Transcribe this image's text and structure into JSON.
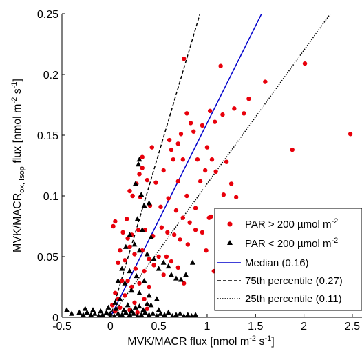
{
  "chart_data": {
    "type": "scatter",
    "xlim": [
      -0.5,
      2.6
    ],
    "ylim": [
      0,
      0.25
    ],
    "xticks": [
      -0.5,
      0,
      0.5,
      1,
      1.5,
      2,
      2.5
    ],
    "xtick_labels": [
      "-0.5",
      "0",
      "0.5",
      "1",
      "1.5",
      "2",
      "2.5"
    ],
    "yticks": [
      0,
      0.05,
      0.1,
      0.15,
      0.2,
      0.25
    ],
    "ytick_labels": [
      "0",
      "0.05",
      "0.1",
      "0.15",
      "0.2",
      "0.25"
    ],
    "xlabel": {
      "main": "MVK/MACR flux [nmol m",
      "sup1": "-2",
      "mid": " s",
      "sup2": "-1",
      "end": "]"
    },
    "ylabel": {
      "main": "MVK/MACR",
      "sub": "ox, Isop",
      "mid": " flux [nmol m",
      "sup1": "-2",
      "mid2": " s",
      "sup2": "-1",
      "end": "]"
    },
    "grid": false,
    "legend_position": "bottom-right",
    "colors": {
      "high_par": "#e8000b",
      "low_par": "#000000",
      "median": "#0000cc",
      "pct75": "#000000",
      "pct25": "#000000"
    },
    "series": [
      {
        "name": "PAR > 200 µmol m-2",
        "label_main": "PAR > 200 µmol m",
        "label_sup": "-2",
        "marker": "circle",
        "color": "#e8000b",
        "points": [
          [
            0.76,
            0.213
          ],
          [
            1.14,
            0.207
          ],
          [
            2.01,
            0.209
          ],
          [
            1.6,
            0.194
          ],
          [
            2.48,
            0.151
          ],
          [
            1.88,
            0.138
          ],
          [
            1.03,
            0.17
          ],
          [
            1.16,
            0.167
          ],
          [
            1.28,
            0.172
          ],
          [
            1.43,
            0.18
          ],
          [
            1.38,
            0.168
          ],
          [
            1.08,
            0.161
          ],
          [
            0.95,
            0.158
          ],
          [
            0.79,
            0.168
          ],
          [
            0.83,
            0.16
          ],
          [
            0.86,
            0.153
          ],
          [
            0.73,
            0.151
          ],
          [
            0.7,
            0.143
          ],
          [
            0.61,
            0.146
          ],
          [
            0.63,
            0.138
          ],
          [
            0.65,
            0.13
          ],
          [
            0.75,
            0.13
          ],
          [
            0.9,
            0.13
          ],
          [
            1.0,
            0.14
          ],
          [
            1.05,
            0.13
          ],
          [
            1.2,
            0.128
          ],
          [
            1.25,
            0.11
          ],
          [
            1.09,
            0.12
          ],
          [
            0.98,
            0.121
          ],
          [
            0.93,
            0.112
          ],
          [
            0.88,
            0.09
          ],
          [
            0.79,
            0.1
          ],
          [
            0.7,
            0.112
          ],
          [
            0.55,
            0.121
          ],
          [
            0.43,
            0.14
          ],
          [
            0.33,
            0.132
          ],
          [
            0.33,
            0.123
          ],
          [
            0.3,
            0.118
          ],
          [
            0.38,
            0.113
          ],
          [
            0.47,
            0.111
          ],
          [
            0.27,
            0.11
          ],
          [
            0.2,
            0.104
          ],
          [
            0.23,
            0.1
          ],
          [
            0.31,
            0.099
          ],
          [
            0.41,
            0.092
          ],
          [
            0.52,
            0.091
          ],
          [
            0.6,
            0.098
          ],
          [
            0.68,
            0.088
          ],
          [
            0.75,
            0.082
          ],
          [
            0.82,
            0.078
          ],
          [
            0.88,
            0.072
          ],
          [
            0.95,
            0.07
          ],
          [
            1.02,
            0.082
          ],
          [
            1.2,
            0.088
          ],
          [
            1.17,
            0.101
          ],
          [
            1.3,
            0.099
          ],
          [
            1.35,
            0.06
          ],
          [
            1.04,
            0.083
          ],
          [
            0.99,
            0.055
          ],
          [
            1.07,
            0.038
          ],
          [
            0.03,
            0.075
          ],
          [
            0.05,
            0.079
          ],
          [
            0.17,
            0.081
          ],
          [
            0.13,
            0.07
          ],
          [
            0.18,
            0.065
          ],
          [
            0.22,
            0.068
          ],
          [
            0.29,
            0.072
          ],
          [
            0.36,
            0.072
          ],
          [
            0.44,
            0.067
          ],
          [
            0.53,
            0.074
          ],
          [
            0.59,
            0.07
          ],
          [
            0.66,
            0.068
          ],
          [
            0.72,
            0.064
          ],
          [
            0.8,
            0.06
          ],
          [
            0.1,
            0.055
          ],
          [
            0.2,
            0.058
          ],
          [
            0.25,
            0.052
          ],
          [
            0.33,
            0.055
          ],
          [
            0.4,
            0.048
          ],
          [
            0.5,
            0.05
          ],
          [
            0.58,
            0.05
          ],
          [
            0.63,
            0.046
          ],
          [
            0.7,
            0.041
          ],
          [
            0.76,
            0.028
          ],
          [
            0.08,
            0.045
          ],
          [
            0.15,
            0.047
          ],
          [
            0.26,
            0.04
          ],
          [
            0.35,
            0.038
          ],
          [
            0.45,
            0.043
          ],
          [
            0.55,
            0.035
          ],
          [
            0.12,
            0.03
          ],
          [
            0.18,
            0.03
          ],
          [
            0.22,
            0.025
          ],
          [
            0.3,
            0.028
          ],
          [
            0.4,
            0.025
          ],
          [
            0.05,
            0.02
          ],
          [
            0.08,
            0.015
          ],
          [
            0.15,
            0.018
          ],
          [
            0.25,
            0.012
          ],
          [
            0.35,
            0.015
          ],
          [
            0.1,
            0.008
          ],
          [
            0.02,
            0.01
          ],
          [
            0.05,
            0.005
          ],
          [
            0.2,
            0.006
          ],
          [
            0.28,
            0.004
          ],
          [
            0.38,
            0.007
          ]
        ]
      },
      {
        "name": "PAR < 200 µmol m-2",
        "label_main": "PAR < 200 µmol m",
        "label_sup": "-2",
        "marker": "triangle",
        "color": "#000000",
        "points": [
          [
            0.3,
            0.13
          ],
          [
            0.29,
            0.126
          ],
          [
            0.26,
            0.11
          ],
          [
            0.32,
            0.101
          ],
          [
            0.4,
            0.094
          ],
          [
            0.35,
            0.092
          ],
          [
            0.28,
            0.081
          ],
          [
            0.33,
            0.072
          ],
          [
            0.2,
            0.068
          ],
          [
            0.42,
            0.066
          ],
          [
            0.25,
            0.06
          ],
          [
            0.16,
            0.058
          ],
          [
            0.3,
            0.055
          ],
          [
            0.38,
            0.052
          ],
          [
            0.45,
            0.048
          ],
          [
            0.55,
            0.045
          ],
          [
            0.5,
            0.04
          ],
          [
            0.6,
            0.042
          ],
          [
            0.63,
            0.035
          ],
          [
            0.68,
            0.032
          ],
          [
            0.73,
            0.031
          ],
          [
            0.78,
            0.035
          ],
          [
            0.85,
            0.045
          ],
          [
            0.12,
            0.04
          ],
          [
            0.2,
            0.038
          ],
          [
            0.27,
            0.034
          ],
          [
            0.35,
            0.03
          ],
          [
            0.08,
            0.03
          ],
          [
            0.15,
            0.028
          ],
          [
            0.22,
            0.022
          ],
          [
            0.3,
            0.02
          ],
          [
            0.4,
            0.018
          ],
          [
            0.48,
            0.015
          ],
          [
            0.1,
            0.015
          ],
          [
            0.05,
            0.012
          ],
          [
            0.18,
            0.01
          ],
          [
            0.26,
            0.008
          ],
          [
            0.34,
            0.006
          ],
          [
            0.42,
            0.01
          ],
          [
            -0.45,
            0.006
          ],
          [
            -0.4,
            0.003
          ],
          [
            -0.32,
            0.004
          ],
          [
            -0.28,
            0.002
          ],
          [
            -0.24,
            0.004
          ],
          [
            -0.2,
            0.002
          ],
          [
            -0.16,
            0.003
          ],
          [
            -0.12,
            0.001
          ],
          [
            -0.08,
            0.002
          ],
          [
            -0.04,
            0.004
          ],
          [
            0.0,
            0.003
          ],
          [
            0.04,
            0.001
          ],
          [
            0.08,
            0.003
          ],
          [
            0.12,
            0.002
          ],
          [
            0.16,
            0.004
          ],
          [
            0.2,
            0.002
          ],
          [
            0.24,
            0.003
          ],
          [
            0.28,
            0.001
          ],
          [
            0.32,
            0.002
          ],
          [
            0.36,
            0.004
          ],
          [
            0.4,
            0.002
          ],
          [
            0.44,
            0.003
          ],
          [
            0.48,
            0.001
          ],
          [
            0.52,
            0.003
          ],
          [
            0.56,
            0.002
          ],
          [
            0.6,
            0.004
          ],
          [
            0.64,
            0.001
          ],
          [
            0.68,
            0.002
          ],
          [
            0.72,
            0.003
          ],
          [
            0.76,
            0.001
          ],
          [
            0.8,
            0.002
          ],
          [
            0.84,
            0.001
          ],
          [
            0.88,
            0.002
          ],
          [
            -0.02,
            0.008
          ],
          [
            0.06,
            0.007
          ],
          [
            0.14,
            0.006
          ],
          [
            0.22,
            0.005
          ],
          [
            0.3,
            0.009
          ],
          [
            0.38,
            0.011
          ],
          [
            -0.1,
            0.005
          ],
          [
            -0.18,
            0.006
          ],
          [
            -0.26,
            0.007
          ],
          [
            0.0,
            0.001
          ],
          [
            0.1,
            0.001
          ],
          [
            0.5,
            0.006
          ]
        ]
      }
    ],
    "lines": [
      {
        "name": "Median (0.16)",
        "slope": 0.16,
        "color": "#0000cc",
        "dash": "none"
      },
      {
        "name": "75th percentile (0.27)",
        "slope": 0.27,
        "color": "#000000",
        "dash": "dashed"
      },
      {
        "name": "25th percentile (0.11)",
        "slope": 0.11,
        "color": "#000000",
        "dash": "dotted"
      }
    ]
  }
}
